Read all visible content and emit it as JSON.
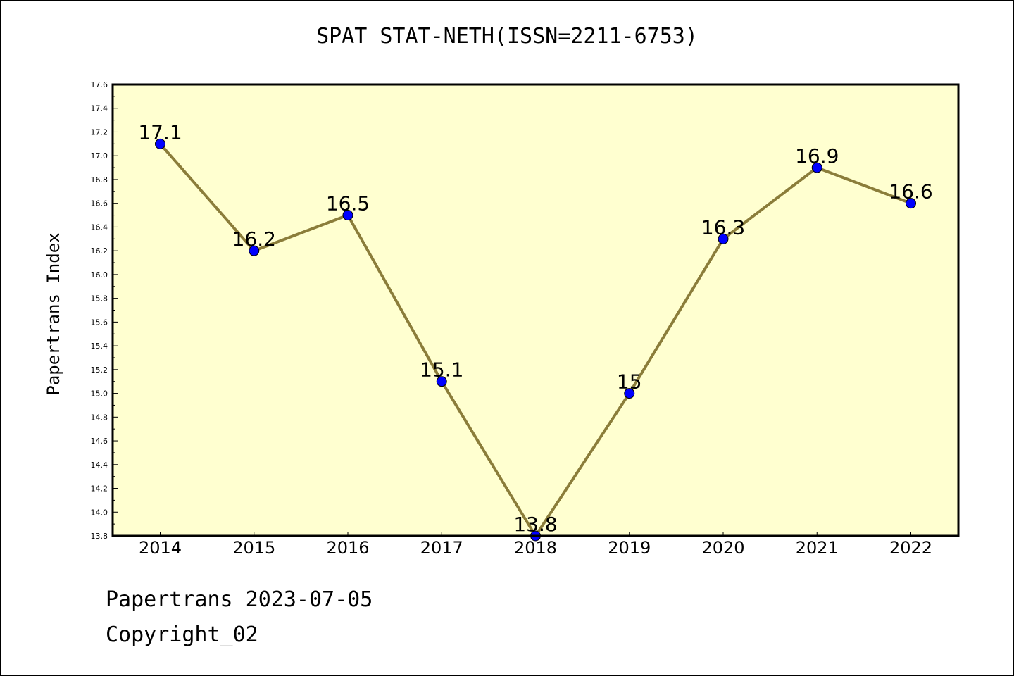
{
  "chart_data": {
    "type": "line",
    "title": "SPAT STAT-NETH(ISSN=2211-6753)",
    "xlabel": "",
    "ylabel": "Papertrans Index",
    "categories": [
      "2014",
      "2015",
      "2016",
      "2017",
      "2018",
      "2019",
      "2020",
      "2021",
      "2022"
    ],
    "values": [
      17.1,
      16.2,
      16.5,
      15.1,
      13.8,
      15,
      16.3,
      16.9,
      16.6
    ],
    "data_labels": [
      "17.1",
      "16.2",
      "16.5",
      "15.1",
      "13.8",
      "15",
      "16.3",
      "16.9",
      "16.6"
    ],
    "ylim": [
      13.8,
      17.6
    ],
    "yticks": [
      "13.8",
      "14.0",
      "14.2",
      "14.4",
      "14.6",
      "14.8",
      "15.0",
      "15.2",
      "15.4",
      "15.6",
      "15.8",
      "16.0",
      "16.2",
      "16.4",
      "16.6",
      "16.8",
      "17.0",
      "17.2",
      "17.4",
      "17.6"
    ],
    "grid": false,
    "legend": "none",
    "colors": {
      "plot_background": "#ffffd0",
      "line": "#8b7d3a",
      "marker": "#0000ff"
    }
  },
  "footer": {
    "line1": "Papertrans 2023-07-05",
    "line2": "Copyright_02"
  }
}
